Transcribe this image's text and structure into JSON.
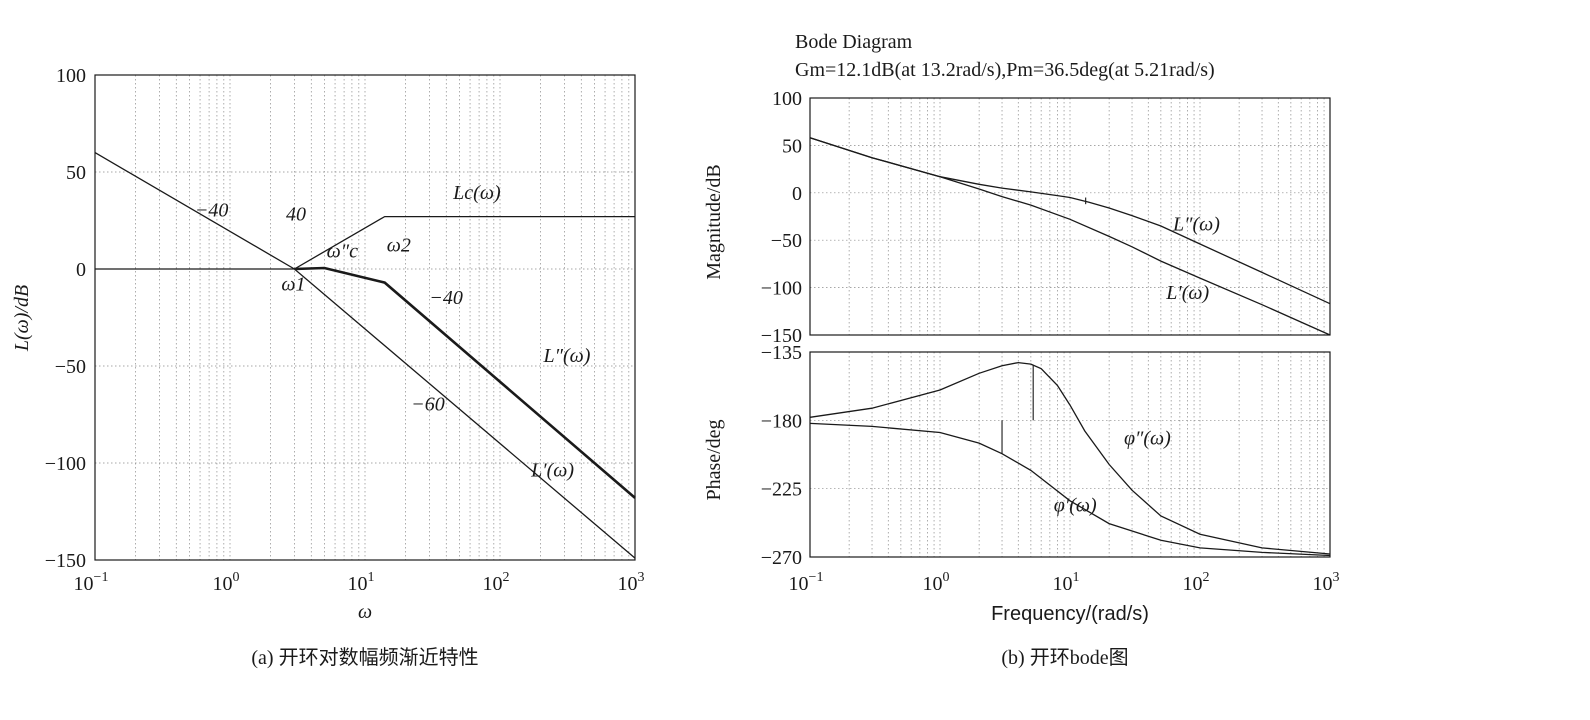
{
  "chart_data": [
    {
      "id": "a",
      "type": "line",
      "caption": "(a) 开环对数幅频渐近特性",
      "xlabel": "ω",
      "ylabel": "L(ω)/dB",
      "xscale": "log",
      "xlim": [
        0.1,
        1000
      ],
      "ylim": [
        -150,
        100
      ],
      "xticks": [
        {
          "value": 0.1,
          "base": "10",
          "exp": "−1"
        },
        {
          "value": 1,
          "base": "10",
          "exp": "0"
        },
        {
          "value": 10,
          "base": "10",
          "exp": "1"
        },
        {
          "value": 100,
          "base": "10",
          "exp": "2"
        },
        {
          "value": 1000,
          "base": "10",
          "exp": "3"
        }
      ],
      "yticks": [
        {
          "value": 100,
          "label": "100"
        },
        {
          "value": 50,
          "label": "50"
        },
        {
          "value": 0,
          "label": "0"
        },
        {
          "value": -50,
          "label": "−50"
        },
        {
          "value": -100,
          "label": "−100"
        },
        {
          "value": -150,
          "label": "−150"
        }
      ],
      "grid": true,
      "series": [
        {
          "key": "Lc",
          "style": "thin",
          "points": [
            [
              0.1,
              0
            ],
            [
              3,
              0
            ],
            [
              14,
              27
            ],
            [
              1000,
              27
            ]
          ]
        },
        {
          "key": "Lp",
          "style": "thin",
          "points": [
            [
              0.1,
              60
            ],
            [
              3,
              0
            ],
            [
              1000,
              -149
            ]
          ]
        },
        {
          "key": "Lpp",
          "style": "bold",
          "points": [
            [
              3,
              0
            ],
            [
              5,
              0.5
            ],
            [
              14,
              -7
            ],
            [
              1000,
              -118
            ]
          ]
        }
      ],
      "annotations": [
        {
          "key": "lab_Lc",
          "text": "Lc(ω)",
          "x": 45,
          "y": 36
        },
        {
          "key": "lab_Lpp",
          "text": "L″(ω)",
          "x": 210,
          "y": -48
        },
        {
          "key": "lab_Lp",
          "text": "L′(ω)",
          "x": 170,
          "y": -107
        },
        {
          "key": "slope1",
          "text": "−40",
          "x": 0.55,
          "y": 27
        },
        {
          "key": "slope2",
          "text": "40",
          "x": 2.6,
          "y": 25
        },
        {
          "key": "slope3",
          "text": "−40",
          "x": 30,
          "y": -18
        },
        {
          "key": "slope4",
          "text": "−60",
          "x": 22,
          "y": -73
        },
        {
          "key": "w1",
          "text": "ω1",
          "x": 2.4,
          "y": -11
        },
        {
          "key": "wc",
          "text": "ω″c",
          "x": 5.2,
          "y": 6
        },
        {
          "key": "w2",
          "text": "ω2",
          "x": 14.5,
          "y": 9
        }
      ]
    },
    {
      "id": "b",
      "type": "line",
      "caption": "(b) 开环bode图",
      "title": "Bode Diagram",
      "subtitle": "Gm=12.1dB(at 13.2rad/s),Pm=36.5deg(at 5.21rad/s)",
      "xlabel": "Frequency/(rad/s)",
      "xscale": "log",
      "xlim": [
        0.1,
        1000
      ],
      "xticks": [
        {
          "value": 0.1,
          "base": "10",
          "exp": "−1"
        },
        {
          "value": 1,
          "base": "10",
          "exp": "0"
        },
        {
          "value": 10,
          "base": "10",
          "exp": "1"
        },
        {
          "value": 100,
          "base": "10",
          "exp": "2"
        },
        {
          "value": 1000,
          "base": "10",
          "exp": "3"
        }
      ],
      "grid": true,
      "magnitude": {
        "ylabel": "Magnitude/dB",
        "ylim": [
          -150,
          100
        ],
        "yticks": [
          {
            "value": 100,
            "label": "100"
          },
          {
            "value": 50,
            "label": "50"
          },
          {
            "value": 0,
            "label": "0"
          },
          {
            "value": -50,
            "label": "−50"
          },
          {
            "value": -100,
            "label": "−100"
          },
          {
            "value": -150,
            "label": "−150"
          }
        ],
        "series": [
          {
            "key": "Lp_curve",
            "label": "L′(ω)",
            "points": [
              [
                0.1,
                58
              ],
              [
                0.3,
                37
              ],
              [
                1,
                17
              ],
              [
                2,
                4
              ],
              [
                3,
                -4
              ],
              [
                5,
                -13
              ],
              [
                10,
                -28
              ],
              [
                20,
                -46
              ],
              [
                30,
                -57
              ],
              [
                50,
                -72
              ],
              [
                100,
                -90
              ],
              [
                300,
                -118
              ],
              [
                1000,
                -150
              ]
            ]
          },
          {
            "key": "Lpp_curve",
            "label": "L″(ω)",
            "points": [
              [
                0.1,
                58
              ],
              [
                0.3,
                37
              ],
              [
                1,
                17
              ],
              [
                2,
                9
              ],
              [
                3,
                5
              ],
              [
                5,
                1
              ],
              [
                8,
                -3
              ],
              [
                10,
                -5
              ],
              [
                14,
                -10
              ],
              [
                20,
                -16
              ],
              [
                30,
                -24
              ],
              [
                50,
                -35
              ],
              [
                100,
                -54
              ],
              [
                300,
                -84
              ],
              [
                1000,
                -117
              ]
            ]
          }
        ],
        "markers": [
          {
            "x": 13.2,
            "y1": -5,
            "y2": -12
          }
        ],
        "annotations": [
          {
            "key": "lab_Lpp_b",
            "text": "L″(ω)",
            "x": 62,
            "y": -40
          },
          {
            "key": "lab_Lp_b",
            "text": "L′(ω)",
            "x": 55,
            "y": -112
          }
        ]
      },
      "phase": {
        "ylabel": "Phase/deg",
        "ylim": [
          -270,
          -135
        ],
        "yticks": [
          {
            "value": -135,
            "label": "−135"
          },
          {
            "value": -180,
            "label": "−180"
          },
          {
            "value": -225,
            "label": "−225"
          },
          {
            "value": -270,
            "label": "−270"
          }
        ],
        "series": [
          {
            "key": "phi_p",
            "label": "φ′(ω)",
            "points": [
              [
                0.1,
                -182
              ],
              [
                0.3,
                -184
              ],
              [
                1,
                -188
              ],
              [
                2,
                -195
              ],
              [
                3,
                -202
              ],
              [
                5,
                -213
              ],
              [
                10,
                -233
              ],
              [
                20,
                -248
              ],
              [
                50,
                -259
              ],
              [
                100,
                -264
              ],
              [
                300,
                -267
              ],
              [
                1000,
                -269
              ]
            ]
          },
          {
            "key": "phi_pp",
            "label": "φ″(ω)",
            "points": [
              [
                0.1,
                -178
              ],
              [
                0.3,
                -172
              ],
              [
                1,
                -160
              ],
              [
                2,
                -149
              ],
              [
                3,
                -144
              ],
              [
                4,
                -142
              ],
              [
                5,
                -143
              ],
              [
                6,
                -146
              ],
              [
                8,
                -157
              ],
              [
                10,
                -170
              ],
              [
                13,
                -187
              ],
              [
                20,
                -209
              ],
              [
                30,
                -226
              ],
              [
                50,
                -243
              ],
              [
                100,
                -255
              ],
              [
                300,
                -264
              ],
              [
                1000,
                -268
              ]
            ]
          }
        ],
        "markers": [
          {
            "x": 3,
            "y1": -180,
            "y2": -202
          },
          {
            "x": 5.21,
            "y1": -143.5,
            "y2": -180
          }
        ],
        "annotations": [
          {
            "key": "lab_phipp",
            "text": "φ″(ω)",
            "x": 26,
            "y": -196
          },
          {
            "key": "lab_phip",
            "text": "φ′(ω)",
            "x": 7.5,
            "y": -240
          }
        ]
      }
    }
  ]
}
